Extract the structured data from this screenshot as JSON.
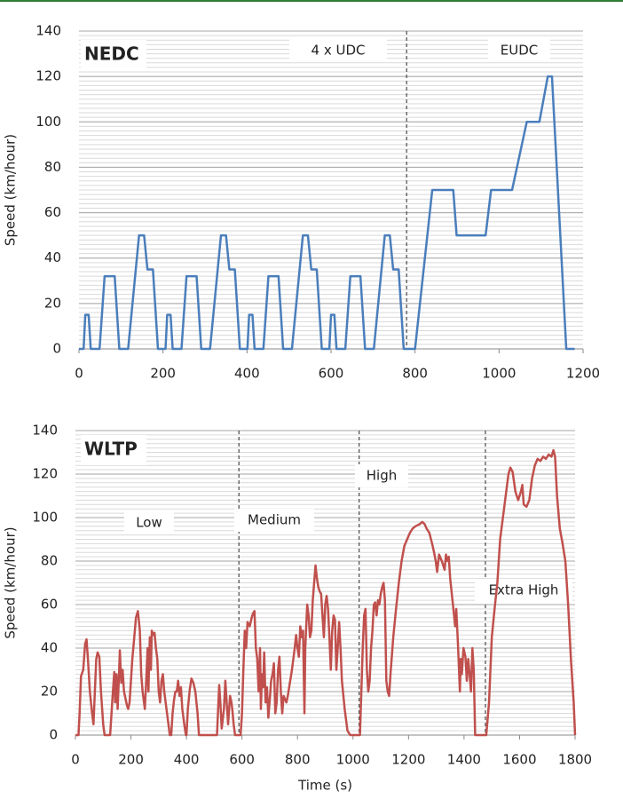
{
  "chart_data": [
    {
      "type": "line",
      "title": "NEDC",
      "y_label": "Speed (km/hour)",
      "color": "#4a7ebb",
      "phase_labels": [
        "4 x UDC",
        "EUDC"
      ],
      "phase_boundaries": [
        780
      ],
      "xlim": [
        0,
        1200
      ],
      "xticks": [
        0,
        200,
        400,
        600,
        800,
        1000,
        1200
      ],
      "ylim": [
        0,
        140
      ],
      "yticks": [
        0,
        20,
        40,
        60,
        80,
        100,
        120,
        140
      ],
      "grid": true,
      "minor_grid_step": 2,
      "x": [
        0,
        11,
        15,
        23,
        28,
        49,
        61,
        85,
        96,
        117,
        143,
        155,
        163,
        176,
        188,
        195,
        206,
        210,
        218,
        223,
        244,
        256,
        280,
        291,
        312,
        338,
        350,
        358,
        371,
        383,
        390,
        401,
        405,
        413,
        418,
        439,
        451,
        475,
        486,
        507,
        533,
        545,
        553,
        566,
        578,
        585,
        596,
        600,
        608,
        613,
        634,
        646,
        670,
        681,
        702,
        728,
        740,
        748,
        761,
        773,
        780,
        800,
        841,
        891,
        899,
        968,
        981,
        1031,
        1066,
        1096,
        1116,
        1126,
        1160,
        1180
      ],
      "values": [
        0,
        0,
        15,
        15,
        0,
        0,
        32,
        32,
        0,
        0,
        50,
        50,
        35,
        35,
        0,
        0,
        0,
        15,
        15,
        0,
        0,
        32,
        32,
        0,
        0,
        50,
        50,
        35,
        35,
        0,
        0,
        0,
        15,
        15,
        0,
        0,
        32,
        32,
        0,
        0,
        50,
        50,
        35,
        35,
        0,
        0,
        0,
        15,
        15,
        0,
        0,
        32,
        32,
        0,
        0,
        50,
        50,
        35,
        35,
        0,
        0,
        0,
        70,
        70,
        50,
        50,
        70,
        70,
        100,
        100,
        120,
        120,
        0,
        0
      ]
    },
    {
      "type": "line",
      "title": "WLTP",
      "y_label": "Speed (km/hour)",
      "x_label": "Time (s)",
      "color": "#c0504d",
      "phase_labels": [
        "Low",
        "Medium",
        "High",
        "Extra High"
      ],
      "phase_boundaries": [
        589,
        1022,
        1477
      ],
      "xlim": [
        0,
        1800
      ],
      "xticks": [
        0,
        200,
        400,
        600,
        800,
        1000,
        1200,
        1400,
        1600,
        1800
      ],
      "ylim": [
        0,
        140
      ],
      "yticks": [
        0,
        20,
        40,
        60,
        80,
        100,
        120,
        140
      ],
      "grid": true,
      "minor_grid_step": 2,
      "x": [
        0,
        11,
        15,
        20,
        28,
        35,
        40,
        45,
        52,
        60,
        65,
        70,
        75,
        80,
        86,
        92,
        100,
        105,
        125,
        135,
        140,
        143,
        148,
        152,
        157,
        160,
        165,
        170,
        175,
        185,
        190,
        195,
        205,
        212,
        218,
        225,
        232,
        237,
        242,
        250,
        255,
        260,
        263,
        268,
        272,
        275,
        280,
        285,
        290,
        295,
        300,
        305,
        310,
        315,
        320,
        330,
        340,
        345,
        350,
        355,
        360,
        365,
        370,
        375,
        380,
        385,
        392,
        398,
        400,
        405,
        412,
        418,
        425,
        432,
        440,
        445,
        510,
        515,
        518,
        522,
        527,
        535,
        540,
        545,
        550,
        557,
        562,
        565,
        570,
        575,
        589,
        595,
        600,
        605,
        610,
        615,
        620,
        628,
        635,
        640,
        645,
        650,
        655,
        660,
        665,
        668,
        672,
        676,
        680,
        685,
        690,
        695,
        700,
        705,
        710,
        715,
        720,
        725,
        730,
        735,
        740,
        745,
        750,
        760,
        765,
        780,
        790,
        795,
        800,
        805,
        810,
        815,
        820,
        825,
        828,
        835,
        840,
        845,
        850,
        855,
        860,
        865,
        870,
        875,
        880,
        885,
        890,
        895,
        900,
        905,
        910,
        915,
        920,
        925,
        930,
        935,
        940,
        945,
        950,
        955,
        960,
        970,
        980,
        990,
        1022,
        1025,
        1030,
        1035,
        1040,
        1045,
        1050,
        1055,
        1060,
        1065,
        1070,
        1075,
        1080,
        1085,
        1090,
        1095,
        1100,
        1105,
        1110,
        1115,
        1120,
        1125,
        1130,
        1135,
        1145,
        1155,
        1165,
        1175,
        1185,
        1195,
        1205,
        1215,
        1225,
        1240,
        1250,
        1258,
        1265,
        1275,
        1285,
        1292,
        1298,
        1303,
        1310,
        1320,
        1330,
        1335,
        1340,
        1345,
        1350,
        1360,
        1368,
        1372,
        1378,
        1385,
        1388,
        1392,
        1398,
        1405,
        1410,
        1415,
        1420,
        1425,
        1430,
        1435,
        1440,
        1477,
        1480,
        1490,
        1500,
        1510,
        1520,
        1530,
        1540,
        1550,
        1560,
        1567,
        1575,
        1585,
        1595,
        1605,
        1610,
        1615,
        1625,
        1635,
        1645,
        1655,
        1665,
        1675,
        1685,
        1695,
        1705,
        1715,
        1722,
        1728,
        1735,
        1745,
        1755,
        1765,
        1775,
        1785,
        1795,
        1800
      ],
      "values": [
        0,
        0,
        10,
        27,
        30,
        42,
        44,
        35,
        20,
        10,
        5,
        20,
        35,
        38,
        36,
        20,
        5,
        0,
        0,
        20,
        29,
        15,
        28,
        12,
        28,
        39,
        24,
        30,
        20,
        14,
        12,
        15,
        35,
        45,
        54,
        57,
        48,
        28,
        20,
        12,
        25,
        40,
        20,
        45,
        30,
        48,
        46,
        47,
        40,
        35,
        20,
        15,
        25,
        28,
        20,
        10,
        0,
        0,
        10,
        16,
        20,
        20,
        25,
        18,
        22,
        12,
        5,
        0,
        0,
        12,
        21,
        26,
        24,
        20,
        10,
        0,
        0,
        15,
        23,
        15,
        3,
        12,
        25,
        15,
        5,
        18,
        15,
        12,
        5,
        0,
        0,
        0,
        10,
        30,
        48,
        40,
        52,
        50,
        54,
        56,
        57,
        40,
        35,
        20,
        40,
        12,
        28,
        22,
        38,
        15,
        22,
        8,
        16,
        25,
        28,
        33,
        10,
        15,
        30,
        36,
        20,
        10,
        18,
        15,
        18,
        30,
        40,
        46,
        40,
        36,
        50,
        45,
        48,
        10,
        40,
        60,
        55,
        45,
        48,
        62,
        70,
        78,
        72,
        68,
        66,
        65,
        55,
        45,
        60,
        64,
        58,
        45,
        30,
        48,
        55,
        53,
        30,
        40,
        52,
        40,
        25,
        12,
        2,
        0,
        0,
        0,
        20,
        40,
        55,
        58,
        30,
        20,
        25,
        40,
        48,
        60,
        61,
        55,
        62,
        60,
        65,
        68,
        70,
        62,
        25,
        20,
        18,
        28,
        45,
        58,
        70,
        80,
        87,
        90,
        93,
        95,
        96,
        97,
        98,
        97,
        95,
        93,
        88,
        84,
        80,
        75,
        83,
        80,
        76,
        83,
        80,
        82,
        72,
        60,
        50,
        58,
        42,
        20,
        35,
        28,
        40,
        36,
        25,
        35,
        28,
        20,
        40,
        30,
        0,
        0,
        0,
        15,
        45,
        58,
        70,
        90,
        100,
        110,
        120,
        123,
        121,
        112,
        108,
        112,
        115,
        106,
        105,
        108,
        118,
        124,
        127,
        126,
        128,
        127,
        129,
        128,
        131,
        128,
        110,
        95,
        88,
        80,
        60,
        35,
        15,
        0
      ]
    }
  ]
}
